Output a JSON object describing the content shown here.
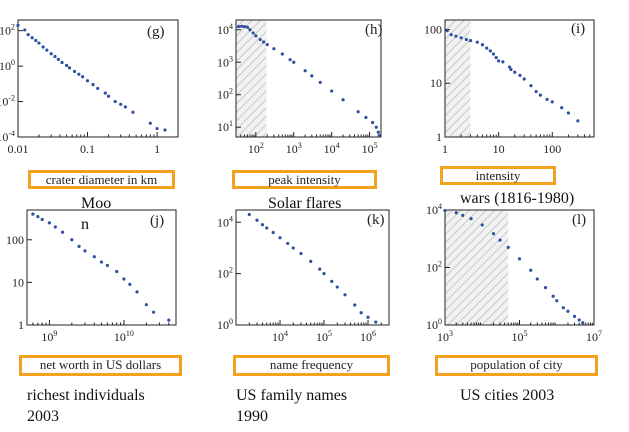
{
  "chart_data": [
    {
      "type": "scatter",
      "panel": "(g)",
      "caption": "Moo n",
      "caption_lines": [
        "Moo",
        "n"
      ],
      "xlabel": "crater diameter in km",
      "xscale": "log",
      "yscale": "log",
      "xlim": [
        0.01,
        2
      ],
      "ylim": [
        0.0001,
        400
      ],
      "x_ticks": [
        {
          "v": 0.01,
          "label": "0.01"
        },
        {
          "v": 0.1,
          "label": "0.1"
        },
        {
          "v": 1,
          "label": "1"
        }
      ],
      "y_ticks": [
        {
          "v": 100,
          "base": "10",
          "exp": "2"
        },
        {
          "v": 1,
          "base": "10",
          "exp": "0"
        },
        {
          "v": 0.01,
          "base": "10",
          "exp": "-2"
        },
        {
          "v": 0.0001,
          "base": "10",
          "exp": "-4"
        }
      ],
      "shaded_x": null,
      "points": [
        [
          0.01,
          200
        ],
        [
          0.0125,
          110
        ],
        [
          0.014,
          60
        ],
        [
          0.016,
          40
        ],
        [
          0.018,
          28
        ],
        [
          0.02,
          20
        ],
        [
          0.023,
          12
        ],
        [
          0.026,
          8
        ],
        [
          0.03,
          5
        ],
        [
          0.034,
          3.5
        ],
        [
          0.038,
          2.4
        ],
        [
          0.043,
          1.6
        ],
        [
          0.05,
          1.1
        ],
        [
          0.055,
          0.8
        ],
        [
          0.065,
          0.5
        ],
        [
          0.075,
          0.35
        ],
        [
          0.085,
          0.25
        ],
        [
          0.1,
          0.15
        ],
        [
          0.12,
          0.09
        ],
        [
          0.14,
          0.055
        ],
        [
          0.18,
          0.03
        ],
        [
          0.2,
          0.02
        ],
        [
          0.25,
          0.01
        ],
        [
          0.3,
          0.007
        ],
        [
          0.35,
          0.005
        ],
        [
          0.45,
          0.0025
        ],
        [
          0.8,
          0.0006
        ],
        [
          1.0,
          0.0003
        ],
        [
          1.3,
          0.00025
        ]
      ]
    },
    {
      "type": "scatter",
      "panel": "(h)",
      "caption": "Solar flares",
      "caption_lines": [
        "Solar flares"
      ],
      "xlabel": "peak intensity",
      "xscale": "log",
      "yscale": "log",
      "xlim": [
        30,
        200000
      ],
      "ylim": [
        5,
        20000
      ],
      "x_ticks": [
        {
          "v": 100,
          "base": "10",
          "exp": "2"
        },
        {
          "v": 1000,
          "base": "10",
          "exp": "3"
        },
        {
          "v": 10000,
          "base": "10",
          "exp": "4"
        },
        {
          "v": 100000,
          "base": "10",
          "exp": "5"
        }
      ],
      "y_ticks": [
        {
          "v": 10000,
          "base": "10",
          "exp": "4"
        },
        {
          "v": 1000,
          "base": "10",
          "exp": "3"
        },
        {
          "v": 100,
          "base": "10",
          "exp": "2"
        },
        {
          "v": 10,
          "base": "10",
          "exp": "1"
        }
      ],
      "shaded_x": [
        30,
        190
      ],
      "points": [
        [
          35,
          12500
        ],
        [
          42,
          12800
        ],
        [
          50,
          12500
        ],
        [
          60,
          12000
        ],
        [
          70,
          10000
        ],
        [
          85,
          8000
        ],
        [
          100,
          6500
        ],
        [
          130,
          5000
        ],
        [
          160,
          4200
        ],
        [
          200,
          3500
        ],
        [
          300,
          2600
        ],
        [
          500,
          1800
        ],
        [
          800,
          1200
        ],
        [
          1000,
          1000
        ],
        [
          2000,
          550
        ],
        [
          3000,
          380
        ],
        [
          5000,
          240
        ],
        [
          10000,
          130
        ],
        [
          20000,
          70
        ],
        [
          50000,
          30
        ],
        [
          80000,
          20
        ],
        [
          120000,
          14
        ],
        [
          150000,
          10
        ],
        [
          170000,
          7
        ],
        [
          180000,
          5.5
        ]
      ]
    },
    {
      "type": "scatter",
      "panel": "(i)",
      "caption": "wars (1816-1980)",
      "caption_lines": [
        "wars (1816-1980)"
      ],
      "xlabel": "intensity",
      "xscale": "log",
      "yscale": "log",
      "xlim": [
        1,
        600
      ],
      "ylim": [
        1,
        150
      ],
      "x_ticks": [
        {
          "v": 1,
          "label": "1"
        },
        {
          "v": 10,
          "label": "10"
        },
        {
          "v": 100,
          "label": "100"
        }
      ],
      "y_ticks": [
        {
          "v": 100,
          "label": "100"
        },
        {
          "v": 10,
          "label": "10"
        },
        {
          "v": 1,
          "label": "1"
        }
      ],
      "shaded_x": [
        1,
        3
      ],
      "points": [
        [
          1.1,
          95
        ],
        [
          1.3,
          80
        ],
        [
          1.6,
          75
        ],
        [
          2,
          70
        ],
        [
          2.5,
          65
        ],
        [
          3,
          62
        ],
        [
          4,
          58
        ],
        [
          5,
          52
        ],
        [
          6,
          45
        ],
        [
          7,
          40
        ],
        [
          8,
          35
        ],
        [
          9,
          30
        ],
        [
          10,
          26
        ],
        [
          12,
          25
        ],
        [
          16,
          20
        ],
        [
          17,
          18
        ],
        [
          20,
          16
        ],
        [
          25,
          14
        ],
        [
          30,
          12
        ],
        [
          40,
          9
        ],
        [
          50,
          7
        ],
        [
          60,
          6
        ],
        [
          80,
          5
        ],
        [
          100,
          4.5
        ],
        [
          150,
          3.5
        ],
        [
          200,
          2.8
        ],
        [
          300,
          2
        ]
      ]
    },
    {
      "type": "scatter",
      "panel": "(j)",
      "caption": "richest individuals 2003",
      "caption_lines": [
        "richest individuals",
        "2003"
      ],
      "xlabel": "net worth in US dollars",
      "xscale": "log",
      "yscale": "log",
      "xlim": [
        500000000,
        50000000000
      ],
      "ylim": [
        1,
        500
      ],
      "x_ticks": [
        {
          "v": 1000000000,
          "base": "10",
          "exp": "9"
        },
        {
          "v": 10000000000,
          "base": "10",
          "exp": "10"
        }
      ],
      "y_ticks": [
        {
          "v": 100,
          "label": "100"
        },
        {
          "v": 10,
          "label": "10"
        },
        {
          "v": 1,
          "label": "1"
        }
      ],
      "shaded_x": null,
      "points": [
        [
          600000000,
          400
        ],
        [
          700000000,
          350
        ],
        [
          800000000,
          300
        ],
        [
          1000000000,
          250
        ],
        [
          1200000000,
          200
        ],
        [
          1500000000,
          150
        ],
        [
          2000000000,
          100
        ],
        [
          2500000000,
          70
        ],
        [
          3000000000,
          55
        ],
        [
          4000000000,
          40
        ],
        [
          5000000000,
          30
        ],
        [
          6000000000,
          25
        ],
        [
          8000000000,
          18
        ],
        [
          10000000000,
          12
        ],
        [
          12000000000,
          9
        ],
        [
          15000000000,
          6
        ],
        [
          20000000000,
          3
        ],
        [
          25000000000,
          2
        ],
        [
          40000000000,
          1.3
        ]
      ]
    },
    {
      "type": "scatter",
      "panel": "(k)",
      "caption": "US family names 1990",
      "caption_lines": [
        "US family names",
        "1990"
      ],
      "xlabel": "name frequency",
      "xscale": "log",
      "yscale": "log",
      "xlim": [
        1000,
        3000000
      ],
      "ylim": [
        1,
        30000
      ],
      "x_ticks": [
        {
          "v": 10000,
          "base": "10",
          "exp": "4"
        },
        {
          "v": 100000,
          "base": "10",
          "exp": "5"
        },
        {
          "v": 1000000,
          "base": "10",
          "exp": "6"
        }
      ],
      "y_ticks": [
        {
          "v": 10000,
          "base": "10",
          "exp": "4"
        },
        {
          "v": 100,
          "base": "10",
          "exp": "2"
        },
        {
          "v": 1,
          "base": "10",
          "exp": "0"
        }
      ],
      "shaded_x": null,
      "points": [
        [
          2000,
          20000
        ],
        [
          3000,
          12000
        ],
        [
          4000,
          8000
        ],
        [
          5000,
          6000
        ],
        [
          7000,
          4000
        ],
        [
          10000,
          2500
        ],
        [
          15000,
          1500
        ],
        [
          20000,
          1000
        ],
        [
          30000,
          600
        ],
        [
          50000,
          300
        ],
        [
          80000,
          150
        ],
        [
          100000,
          100
        ],
        [
          150000,
          50
        ],
        [
          200000,
          30
        ],
        [
          300000,
          15
        ],
        [
          500000,
          6
        ],
        [
          700000,
          3
        ],
        [
          1000000,
          2
        ],
        [
          1500000,
          1.3
        ]
      ]
    },
    {
      "type": "scatter",
      "panel": "(l)",
      "caption": "US cities 2003",
      "caption_lines": [
        "US cities 2003"
      ],
      "xlabel": "population of city",
      "xscale": "log",
      "yscale": "log",
      "xlim": [
        1000,
        10000000
      ],
      "ylim": [
        1,
        10000
      ],
      "x_ticks": [
        {
          "v": 1000,
          "base": "10",
          "exp": "3"
        },
        {
          "v": 100000,
          "base": "10",
          "exp": "5"
        },
        {
          "v": 10000000,
          "base": "10",
          "exp": "7"
        }
      ],
      "y_ticks": [
        {
          "v": 10000,
          "base": "10",
          "exp": "4"
        },
        {
          "v": 100,
          "base": "10",
          "exp": "2"
        },
        {
          "v": 1,
          "base": "10",
          "exp": "0"
        }
      ],
      "shaded_x": [
        1000,
        50000
      ],
      "points": [
        [
          1000,
          9500
        ],
        [
          2000,
          8000
        ],
        [
          3000,
          6500
        ],
        [
          5000,
          5000
        ],
        [
          10000,
          3000
        ],
        [
          20000,
          1500
        ],
        [
          30000,
          900
        ],
        [
          50000,
          500
        ],
        [
          100000,
          200
        ],
        [
          200000,
          80
        ],
        [
          300000,
          40
        ],
        [
          500000,
          20
        ],
        [
          800000,
          10
        ],
        [
          1000000,
          7
        ],
        [
          1500000,
          4
        ],
        [
          2000000,
          3
        ],
        [
          3000000,
          2
        ],
        [
          4000000,
          1.5
        ],
        [
          5000000,
          1.2
        ]
      ]
    }
  ]
}
